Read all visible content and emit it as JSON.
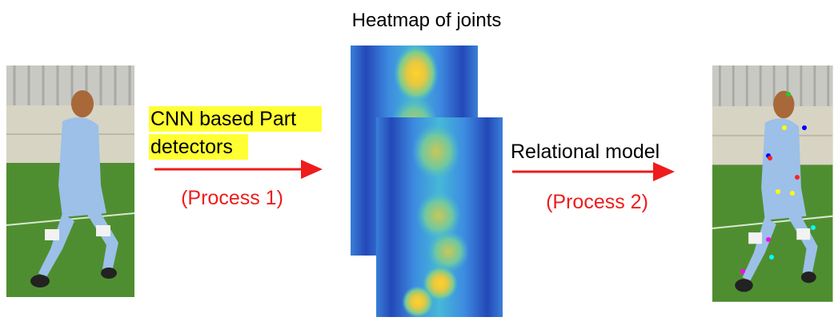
{
  "title": "Heatmap of joints",
  "stage_1": {
    "label_lines": [
      "CNN based Part",
      "detectors"
    ],
    "process": "(Process 1)"
  },
  "stage_2": {
    "label": "Relational model",
    "process": "(Process 2)"
  }
}
